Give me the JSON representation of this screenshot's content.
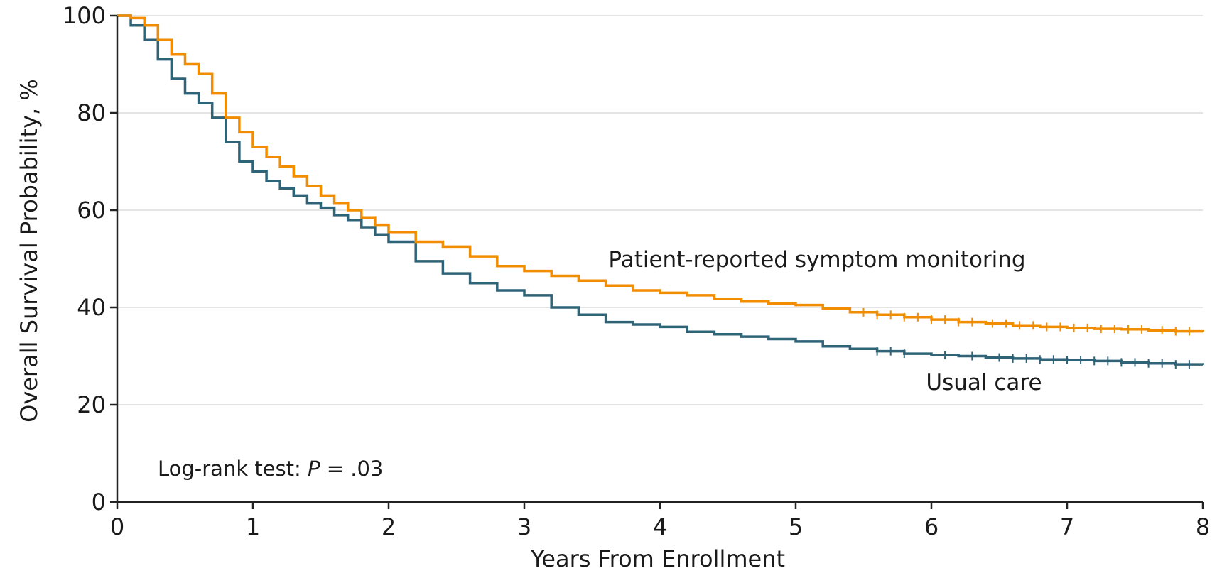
{
  "chart_data": {
    "type": "line",
    "title": "",
    "xlabel": "Years From Enrollment",
    "ylabel": "Overall Survival Probability, %",
    "xlim": [
      0,
      8
    ],
    "ylim": [
      0,
      100
    ],
    "x_ticks": [
      "0",
      "1",
      "2",
      "3",
      "4",
      "5",
      "6",
      "7",
      "8"
    ],
    "y_ticks": [
      "0",
      "20",
      "40",
      "60",
      "80",
      "100"
    ],
    "grid": "horizontal",
    "legend": "inline labels",
    "annotation": {
      "prefix": "Log-rank test: ",
      "italic": "P",
      "suffix": " = .03"
    },
    "series": [
      {
        "name": "Patient-reported symptom monitoring",
        "color": "#f28c00",
        "x": [
          0,
          0.1,
          0.2,
          0.3,
          0.4,
          0.5,
          0.6,
          0.7,
          0.8,
          0.9,
          1.0,
          1.1,
          1.2,
          1.3,
          1.4,
          1.5,
          1.6,
          1.7,
          1.8,
          1.9,
          2.0,
          2.2,
          2.4,
          2.6,
          2.8,
          3.0,
          3.2,
          3.4,
          3.6,
          3.8,
          4.0,
          4.2,
          4.4,
          4.6,
          4.8,
          5.0,
          5.2,
          5.4,
          5.6,
          5.8,
          6.0,
          6.2,
          6.4,
          6.6,
          6.8,
          7.0,
          7.2,
          7.4,
          7.6,
          7.8,
          8.0
        ],
        "y": [
          100,
          99.5,
          98,
          95,
          92,
          90,
          88,
          84,
          79,
          76,
          73,
          71,
          69,
          67,
          65,
          63,
          61.5,
          60,
          58.5,
          57,
          55.5,
          53.5,
          52.5,
          50.5,
          48.5,
          47.5,
          46.5,
          45.5,
          44.5,
          43.5,
          43,
          42.5,
          41.8,
          41.2,
          40.8,
          40.5,
          39.8,
          39,
          38.5,
          38,
          37.5,
          37,
          36.7,
          36.3,
          36,
          35.8,
          35.6,
          35.5,
          35.3,
          35.1,
          35
        ],
        "label": "Patient-reported symptom monitoring"
      },
      {
        "name": "Usual care",
        "color": "#2e6378",
        "x": [
          0,
          0.1,
          0.2,
          0.3,
          0.4,
          0.5,
          0.6,
          0.7,
          0.8,
          0.9,
          1.0,
          1.1,
          1.2,
          1.3,
          1.4,
          1.5,
          1.6,
          1.7,
          1.8,
          1.9,
          2.0,
          2.2,
          2.4,
          2.6,
          2.8,
          3.0,
          3.2,
          3.4,
          3.6,
          3.8,
          4.0,
          4.2,
          4.4,
          4.6,
          4.8,
          5.0,
          5.2,
          5.4,
          5.6,
          5.8,
          6.0,
          6.2,
          6.4,
          6.6,
          6.8,
          7.0,
          7.2,
          7.4,
          7.6,
          7.8,
          8.0
        ],
        "y": [
          100,
          98,
          95,
          91,
          87,
          84,
          82,
          79,
          74,
          70,
          68,
          66,
          64.5,
          63,
          61.5,
          60.5,
          59,
          58,
          56.5,
          55,
          53.5,
          49.5,
          47,
          45,
          43.5,
          42.5,
          40,
          38.5,
          37,
          36.5,
          36,
          35,
          34.5,
          34,
          33.5,
          33,
          32,
          31.5,
          31,
          30.5,
          30.2,
          30,
          29.7,
          29.5,
          29.3,
          29.2,
          29,
          28.7,
          28.5,
          28.3,
          28.2
        ],
        "label": "Usual care"
      }
    ],
    "censor_marks": [
      {
        "series": 0,
        "x": [
          5.5,
          5.6,
          5.7,
          5.8,
          5.9,
          6.0,
          6.1,
          6.2,
          6.3,
          6.45,
          6.55,
          6.65,
          6.75,
          6.85,
          6.95,
          7.05,
          7.15,
          7.25,
          7.35,
          7.45,
          7.55,
          7.7,
          7.8,
          7.9
        ]
      },
      {
        "series": 1,
        "x": [
          5.6,
          5.7,
          5.8,
          6.1,
          6.3,
          6.5,
          6.6,
          6.7,
          6.8,
          6.9,
          7.0,
          7.1,
          7.2,
          7.3,
          7.4,
          7.5,
          7.6,
          7.7,
          7.8,
          7.9
        ]
      }
    ]
  }
}
